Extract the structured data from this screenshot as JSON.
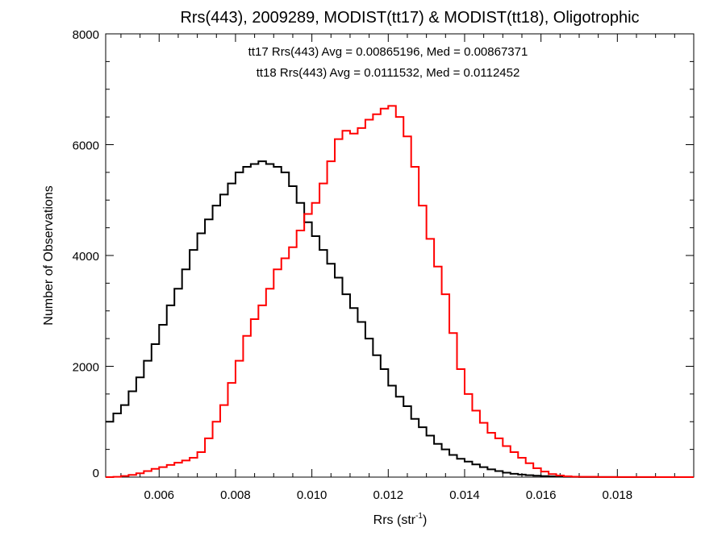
{
  "chart_data": {
    "type": "line",
    "title": "Rrs(443), 2009289, MODIST(tt17) & MODIST(tt18), Oligotrophic",
    "xlabel": "Rrs (str",
    "xlabel_sup": "-1",
    "xlabel_close": ")",
    "ylabel": "Number of Observations",
    "xlim": [
      0.0046,
      0.02
    ],
    "ylim": [
      0,
      8000
    ],
    "x_ticks": [
      0.006,
      0.008,
      0.01,
      0.012,
      0.014,
      0.016,
      0.018
    ],
    "x_tick_labels": [
      "0.006",
      "0.008",
      "0.010",
      "0.012",
      "0.014",
      "0.016",
      "0.018"
    ],
    "y_ticks": [
      0,
      2000,
      4000,
      6000,
      8000
    ],
    "y_tick_labels": [
      "0",
      "2000",
      "4000",
      "6000",
      "8000"
    ],
    "grid": false,
    "annotations": [
      {
        "text": "tt17 Rrs(443) Avg = 0.00865196, Med = 0.00867371",
        "color": "#000000"
      },
      {
        "text": "tt18 Rrs(443) Avg = 0.0111532, Med = 0.0112452",
        "color": "#ff0000"
      }
    ],
    "series": [
      {
        "color": "#000000",
        "x": [
          0.0046,
          0.0048,
          0.005,
          0.0052,
          0.0054,
          0.0056,
          0.0058,
          0.006,
          0.0062,
          0.0064,
          0.0066,
          0.0068,
          0.007,
          0.0072,
          0.0074,
          0.0076,
          0.0078,
          0.008,
          0.0082,
          0.0084,
          0.0086,
          0.0088,
          0.009,
          0.0092,
          0.0094,
          0.0096,
          0.0098,
          0.01,
          0.0102,
          0.0104,
          0.0106,
          0.0108,
          0.011,
          0.0112,
          0.0114,
          0.0116,
          0.0118,
          0.012,
          0.0122,
          0.0124,
          0.0126,
          0.0128,
          0.013,
          0.0132,
          0.0134,
          0.0136,
          0.0138,
          0.014,
          0.0142,
          0.0144,
          0.0146,
          0.0148,
          0.015,
          0.0152,
          0.0154,
          0.0156,
          0.0158,
          0.016,
          0.0162,
          0.0164,
          0.0166,
          0.0168,
          0.017,
          0.0175,
          0.018,
          0.019,
          0.02
        ],
        "y": [
          1000,
          1150,
          1300,
          1550,
          1800,
          2100,
          2400,
          2750,
          3100,
          3400,
          3750,
          4100,
          4400,
          4650,
          4900,
          5100,
          5300,
          5500,
          5600,
          5650,
          5700,
          5650,
          5600,
          5500,
          5250,
          4950,
          4600,
          4350,
          4100,
          3850,
          3600,
          3300,
          3050,
          2800,
          2500,
          2200,
          1950,
          1650,
          1450,
          1280,
          1050,
          900,
          750,
          600,
          500,
          400,
          330,
          280,
          230,
          180,
          140,
          110,
          80,
          60,
          45,
          35,
          25,
          18,
          12,
          8,
          5,
          3,
          2,
          1,
          0,
          0,
          0
        ]
      },
      {
        "color": "#ff0000",
        "x": [
          0.0046,
          0.0048,
          0.005,
          0.0052,
          0.0054,
          0.0056,
          0.0058,
          0.006,
          0.0062,
          0.0064,
          0.0066,
          0.0068,
          0.007,
          0.0072,
          0.0074,
          0.0076,
          0.0078,
          0.008,
          0.0082,
          0.0084,
          0.0086,
          0.0088,
          0.009,
          0.0092,
          0.0094,
          0.0096,
          0.0098,
          0.01,
          0.0102,
          0.0104,
          0.0106,
          0.0108,
          0.011,
          0.0112,
          0.0114,
          0.0116,
          0.0118,
          0.012,
          0.0122,
          0.0124,
          0.0126,
          0.0128,
          0.013,
          0.0132,
          0.0134,
          0.0136,
          0.0138,
          0.014,
          0.0142,
          0.0144,
          0.0146,
          0.0148,
          0.015,
          0.0152,
          0.0154,
          0.0156,
          0.0158,
          0.016,
          0.0162,
          0.0164,
          0.0166,
          0.0168,
          0.017,
          0.0175,
          0.018,
          0.019,
          0.02
        ],
        "y": [
          0,
          5,
          20,
          40,
          70,
          110,
          150,
          180,
          220,
          260,
          300,
          350,
          450,
          700,
          1000,
          1300,
          1700,
          2100,
          2550,
          2850,
          3100,
          3400,
          3750,
          3950,
          4150,
          4450,
          4750,
          4950,
          5300,
          5700,
          6100,
          6250,
          6200,
          6300,
          6450,
          6550,
          6650,
          6700,
          6500,
          6150,
          5600,
          4900,
          4300,
          3800,
          3300,
          2600,
          1950,
          1500,
          1200,
          980,
          800,
          700,
          560,
          450,
          350,
          250,
          160,
          100,
          55,
          30,
          15,
          8,
          5,
          2,
          1,
          0,
          0
        ]
      }
    ]
  }
}
